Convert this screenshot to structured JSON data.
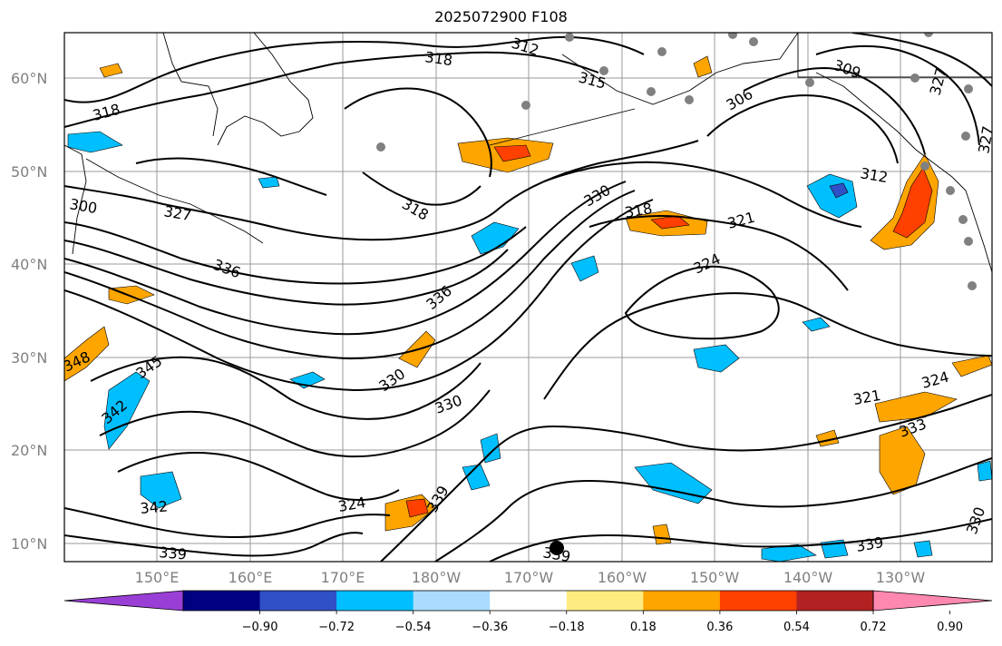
{
  "title": "2025072900 F108",
  "map": {
    "lat_ticks": [
      "60°N",
      "50°N",
      "40°N",
      "30°N",
      "20°N",
      "10°N"
    ],
    "lon_ticks": [
      "150°E",
      "160°E",
      "170°E",
      "180°W",
      "170°W",
      "160°W",
      "150°W",
      "140°W",
      "130°W"
    ],
    "contour_labels": [
      {
        "text": "312",
        "id": "c1"
      },
      {
        "text": "318",
        "id": "c2"
      },
      {
        "text": "315",
        "id": "c3"
      },
      {
        "text": "309",
        "id": "c4"
      },
      {
        "text": "306",
        "id": "c5"
      },
      {
        "text": "327",
        "id": "c6"
      },
      {
        "text": "327",
        "id": "c7"
      },
      {
        "text": "318",
        "id": "c8"
      },
      {
        "text": "312",
        "id": "c9"
      },
      {
        "text": "300",
        "id": "c10"
      },
      {
        "text": "327",
        "id": "c11"
      },
      {
        "text": "318",
        "id": "c12"
      },
      {
        "text": "330",
        "id": "c13"
      },
      {
        "text": "318",
        "id": "c14"
      },
      {
        "text": "321",
        "id": "c15"
      },
      {
        "text": "336",
        "id": "c16"
      },
      {
        "text": "324",
        "id": "c17"
      },
      {
        "text": "336",
        "id": "c18"
      },
      {
        "text": "348",
        "id": "c19"
      },
      {
        "text": "345",
        "id": "c20"
      },
      {
        "text": "330",
        "id": "c21"
      },
      {
        "text": "342",
        "id": "c22"
      },
      {
        "text": "330",
        "id": "c23"
      },
      {
        "text": "321",
        "id": "c24"
      },
      {
        "text": "324",
        "id": "c25"
      },
      {
        "text": "333",
        "id": "c26"
      },
      {
        "text": "342",
        "id": "c27"
      },
      {
        "text": "324",
        "id": "c28"
      },
      {
        "text": "339",
        "id": "c29"
      },
      {
        "text": "339",
        "id": "c30"
      },
      {
        "text": "339",
        "id": "c31"
      },
      {
        "text": "330",
        "id": "c32"
      },
      {
        "text": "339",
        "id": "c33"
      }
    ]
  },
  "colorbar": {
    "colors": [
      "#9a3fd6",
      "#000080",
      "#3050c8",
      "#00bfff",
      "#aadcff",
      "#ffffff",
      "#ffec80",
      "#ffa500",
      "#ff4000",
      "#b22222",
      "#ff88b0"
    ],
    "ticks": [
      "−0.90",
      "−0.72",
      "−0.54",
      "−0.36",
      "−0.18",
      "0.18",
      "0.36",
      "0.54",
      "0.72",
      "0.90"
    ]
  }
}
